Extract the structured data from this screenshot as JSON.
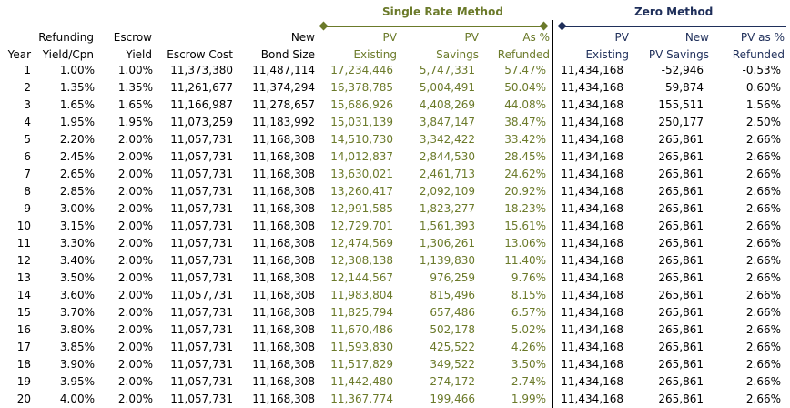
{
  "groups": {
    "single_rate": {
      "title": "Single Rate Method",
      "color": "#6b7a2a"
    },
    "zero": {
      "title": "Zero Method",
      "color": "#1f2f5a"
    }
  },
  "headers": {
    "year": {
      "line1": "",
      "line2": "Year"
    },
    "refunding": {
      "line1": "Refunding",
      "line2": "Yield/Cpn"
    },
    "escrow": {
      "line1": "Escrow",
      "line2": "Yield"
    },
    "escrow_cost": {
      "line1": "",
      "line2": "Escrow Cost"
    },
    "new_bond": {
      "line1": "New",
      "line2": "Bond Size"
    },
    "sr_pv_existing": {
      "line1": "PV",
      "line2": "Existing"
    },
    "sr_pv_savings": {
      "line1": "PV",
      "line2": "Savings"
    },
    "sr_pct": {
      "line1": "As %",
      "line2": "Refunded"
    },
    "z_pv_existing": {
      "line1": "PV",
      "line2": "Existing"
    },
    "z_new_pv": {
      "line1": "New",
      "line2": "PV Savings"
    },
    "z_pct": {
      "line1": "PV as %",
      "line2": "Refunded"
    }
  },
  "rows": [
    [
      "1",
      "1.00%",
      "1.00%",
      "11,373,380",
      "11,487,114",
      "17,234,446",
      "5,747,331",
      "57.47%",
      "11,434,168",
      "-52,946",
      "-0.53%"
    ],
    [
      "2",
      "1.35%",
      "1.35%",
      "11,261,677",
      "11,374,294",
      "16,378,785",
      "5,004,491",
      "50.04%",
      "11,434,168",
      "59,874",
      "0.60%"
    ],
    [
      "3",
      "1.65%",
      "1.65%",
      "11,166,987",
      "11,278,657",
      "15,686,926",
      "4,408,269",
      "44.08%",
      "11,434,168",
      "155,511",
      "1.56%"
    ],
    [
      "4",
      "1.95%",
      "1.95%",
      "11,073,259",
      "11,183,992",
      "15,031,139",
      "3,847,147",
      "38.47%",
      "11,434,168",
      "250,177",
      "2.50%"
    ],
    [
      "5",
      "2.20%",
      "2.00%",
      "11,057,731",
      "11,168,308",
      "14,510,730",
      "3,342,422",
      "33.42%",
      "11,434,168",
      "265,861",
      "2.66%"
    ],
    [
      "6",
      "2.45%",
      "2.00%",
      "11,057,731",
      "11,168,308",
      "14,012,837",
      "2,844,530",
      "28.45%",
      "11,434,168",
      "265,861",
      "2.66%"
    ],
    [
      "7",
      "2.65%",
      "2.00%",
      "11,057,731",
      "11,168,308",
      "13,630,021",
      "2,461,713",
      "24.62%",
      "11,434,168",
      "265,861",
      "2.66%"
    ],
    [
      "8",
      "2.85%",
      "2.00%",
      "11,057,731",
      "11,168,308",
      "13,260,417",
      "2,092,109",
      "20.92%",
      "11,434,168",
      "265,861",
      "2.66%"
    ],
    [
      "9",
      "3.00%",
      "2.00%",
      "11,057,731",
      "11,168,308",
      "12,991,585",
      "1,823,277",
      "18.23%",
      "11,434,168",
      "265,861",
      "2.66%"
    ],
    [
      "10",
      "3.15%",
      "2.00%",
      "11,057,731",
      "11,168,308",
      "12,729,701",
      "1,561,393",
      "15.61%",
      "11,434,168",
      "265,861",
      "2.66%"
    ],
    [
      "11",
      "3.30%",
      "2.00%",
      "11,057,731",
      "11,168,308",
      "12,474,569",
      "1,306,261",
      "13.06%",
      "11,434,168",
      "265,861",
      "2.66%"
    ],
    [
      "12",
      "3.40%",
      "2.00%",
      "11,057,731",
      "11,168,308",
      "12,308,138",
      "1,139,830",
      "11.40%",
      "11,434,168",
      "265,861",
      "2.66%"
    ],
    [
      "13",
      "3.50%",
      "2.00%",
      "11,057,731",
      "11,168,308",
      "12,144,567",
      "976,259",
      "9.76%",
      "11,434,168",
      "265,861",
      "2.66%"
    ],
    [
      "14",
      "3.60%",
      "2.00%",
      "11,057,731",
      "11,168,308",
      "11,983,804",
      "815,496",
      "8.15%",
      "11,434,168",
      "265,861",
      "2.66%"
    ],
    [
      "15",
      "3.70%",
      "2.00%",
      "11,057,731",
      "11,168,308",
      "11,825,794",
      "657,486",
      "6.57%",
      "11,434,168",
      "265,861",
      "2.66%"
    ],
    [
      "16",
      "3.80%",
      "2.00%",
      "11,057,731",
      "11,168,308",
      "11,670,486",
      "502,178",
      "5.02%",
      "11,434,168",
      "265,861",
      "2.66%"
    ],
    [
      "17",
      "3.85%",
      "2.00%",
      "11,057,731",
      "11,168,308",
      "11,593,830",
      "425,522",
      "4.26%",
      "11,434,168",
      "265,861",
      "2.66%"
    ],
    [
      "18",
      "3.90%",
      "2.00%",
      "11,057,731",
      "11,168,308",
      "11,517,829",
      "349,522",
      "3.50%",
      "11,434,168",
      "265,861",
      "2.66%"
    ],
    [
      "19",
      "3.95%",
      "2.00%",
      "11,057,731",
      "11,168,308",
      "11,442,480",
      "274,172",
      "2.74%",
      "11,434,168",
      "265,861",
      "2.66%"
    ],
    [
      "20",
      "4.00%",
      "2.00%",
      "11,057,731",
      "11,168,308",
      "11,367,774",
      "199,466",
      "1.99%",
      "11,434,168",
      "265,861",
      "2.66%"
    ]
  ]
}
